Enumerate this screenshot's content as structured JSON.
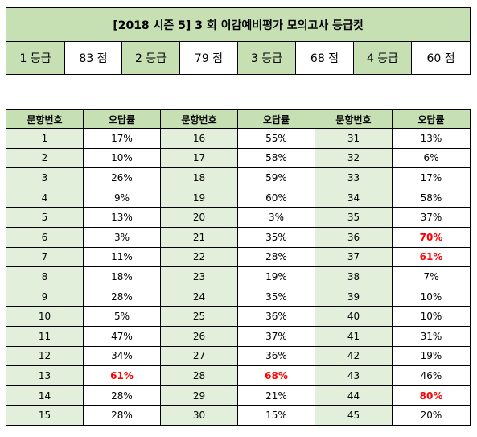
{
  "header": {
    "title": "[2018 시즌 5] 3 회  이감예비평가  모의고사  등급컷",
    "grades": [
      {
        "label": "1 등급",
        "score": "83 점"
      },
      {
        "label": "2 등급",
        "score": "79 점"
      },
      {
        "label": "3 등급",
        "score": "68 점"
      },
      {
        "label": "4 등급",
        "score": "60 점"
      }
    ]
  },
  "table": {
    "headers": [
      "문항번호",
      "오답률",
      "문항번호",
      "오답률",
      "문항번호",
      "오답률"
    ],
    "highlight_color": "#ff0000",
    "rows": [
      [
        {
          "n": "1",
          "r": "17%"
        },
        {
          "n": "16",
          "r": "55%"
        },
        {
          "n": "31",
          "r": "13%"
        }
      ],
      [
        {
          "n": "2",
          "r": "10%"
        },
        {
          "n": "17",
          "r": "58%"
        },
        {
          "n": "32",
          "r": "6%"
        }
      ],
      [
        {
          "n": "3",
          "r": "26%"
        },
        {
          "n": "18",
          "r": "59%"
        },
        {
          "n": "33",
          "r": "17%"
        }
      ],
      [
        {
          "n": "4",
          "r": "9%"
        },
        {
          "n": "19",
          "r": "60%"
        },
        {
          "n": "34",
          "r": "58%"
        }
      ],
      [
        {
          "n": "5",
          "r": "13%"
        },
        {
          "n": "20",
          "r": "3%"
        },
        {
          "n": "35",
          "r": "37%"
        }
      ],
      [
        {
          "n": "6",
          "r": "3%"
        },
        {
          "n": "21",
          "r": "35%"
        },
        {
          "n": "36",
          "r": "70%",
          "hi": true
        }
      ],
      [
        {
          "n": "7",
          "r": "11%"
        },
        {
          "n": "22",
          "r": "28%"
        },
        {
          "n": "37",
          "r": "61%",
          "hi": true
        }
      ],
      [
        {
          "n": "8",
          "r": "18%"
        },
        {
          "n": "23",
          "r": "19%"
        },
        {
          "n": "38",
          "r": "7%"
        }
      ],
      [
        {
          "n": "9",
          "r": "28%"
        },
        {
          "n": "24",
          "r": "35%"
        },
        {
          "n": "39",
          "r": "10%"
        }
      ],
      [
        {
          "n": "10",
          "r": "5%"
        },
        {
          "n": "25",
          "r": "36%"
        },
        {
          "n": "40",
          "r": "10%"
        }
      ],
      [
        {
          "n": "11",
          "r": "47%"
        },
        {
          "n": "26",
          "r": "37%"
        },
        {
          "n": "41",
          "r": "31%"
        }
      ],
      [
        {
          "n": "12",
          "r": "34%"
        },
        {
          "n": "27",
          "r": "36%"
        },
        {
          "n": "42",
          "r": "19%"
        }
      ],
      [
        {
          "n": "13",
          "r": "61%",
          "hi": true
        },
        {
          "n": "28",
          "r": "68%",
          "hi": true
        },
        {
          "n": "43",
          "r": "46%"
        }
      ],
      [
        {
          "n": "14",
          "r": "28%"
        },
        {
          "n": "29",
          "r": "21%"
        },
        {
          "n": "44",
          "r": "80%",
          "hi": true
        }
      ],
      [
        {
          "n": "15",
          "r": "28%"
        },
        {
          "n": "30",
          "r": "15%"
        },
        {
          "n": "45",
          "r": "20%"
        }
      ]
    ]
  }
}
